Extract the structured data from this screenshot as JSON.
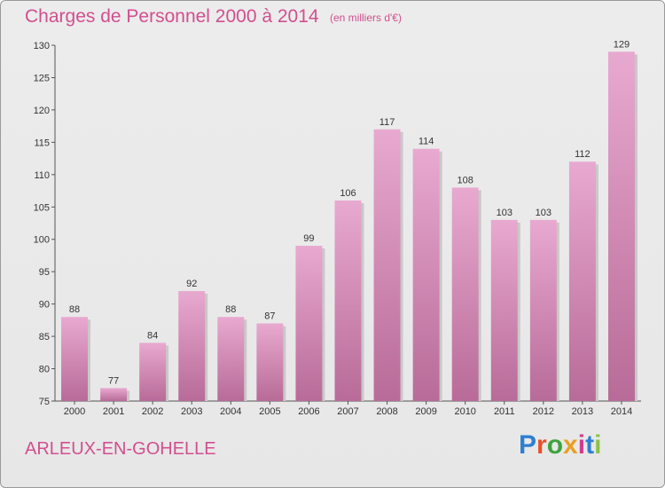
{
  "header": {
    "title": "Charges de Personnel 2000 à 2014",
    "subtitle": "(en milliers d'€)"
  },
  "footer": {
    "city": "ARLEUX-EN-GOHELLE",
    "logo_text": "Proxiti",
    "logo_colors": [
      "#2f7fd1",
      "#e8502a",
      "#3da33d",
      "#e8a020",
      "#cf3b8c",
      "#2f7fd1",
      "#8bc34a"
    ]
  },
  "colors": {
    "bar_top": "#e8a9d0",
    "bar_bottom": "#b86b98",
    "title_pink": "#d24f8f"
  },
  "chart_data": {
    "type": "bar",
    "categories": [
      "2000",
      "2001",
      "2002",
      "2003",
      "2004",
      "2005",
      "2006",
      "2007",
      "2008",
      "2009",
      "2010",
      "2011",
      "2012",
      "2013",
      "2014"
    ],
    "values": [
      88,
      77,
      84,
      92,
      88,
      87,
      99,
      106,
      117,
      114,
      108,
      103,
      103,
      112,
      129
    ],
    "ylim": [
      75,
      130
    ],
    "yticks": [
      75,
      80,
      85,
      90,
      95,
      100,
      105,
      110,
      115,
      120,
      125,
      130
    ],
    "title": "Charges de Personnel 2000 à 2014",
    "xlabel": "",
    "ylabel": "",
    "grid": false,
    "data_labels": true
  }
}
